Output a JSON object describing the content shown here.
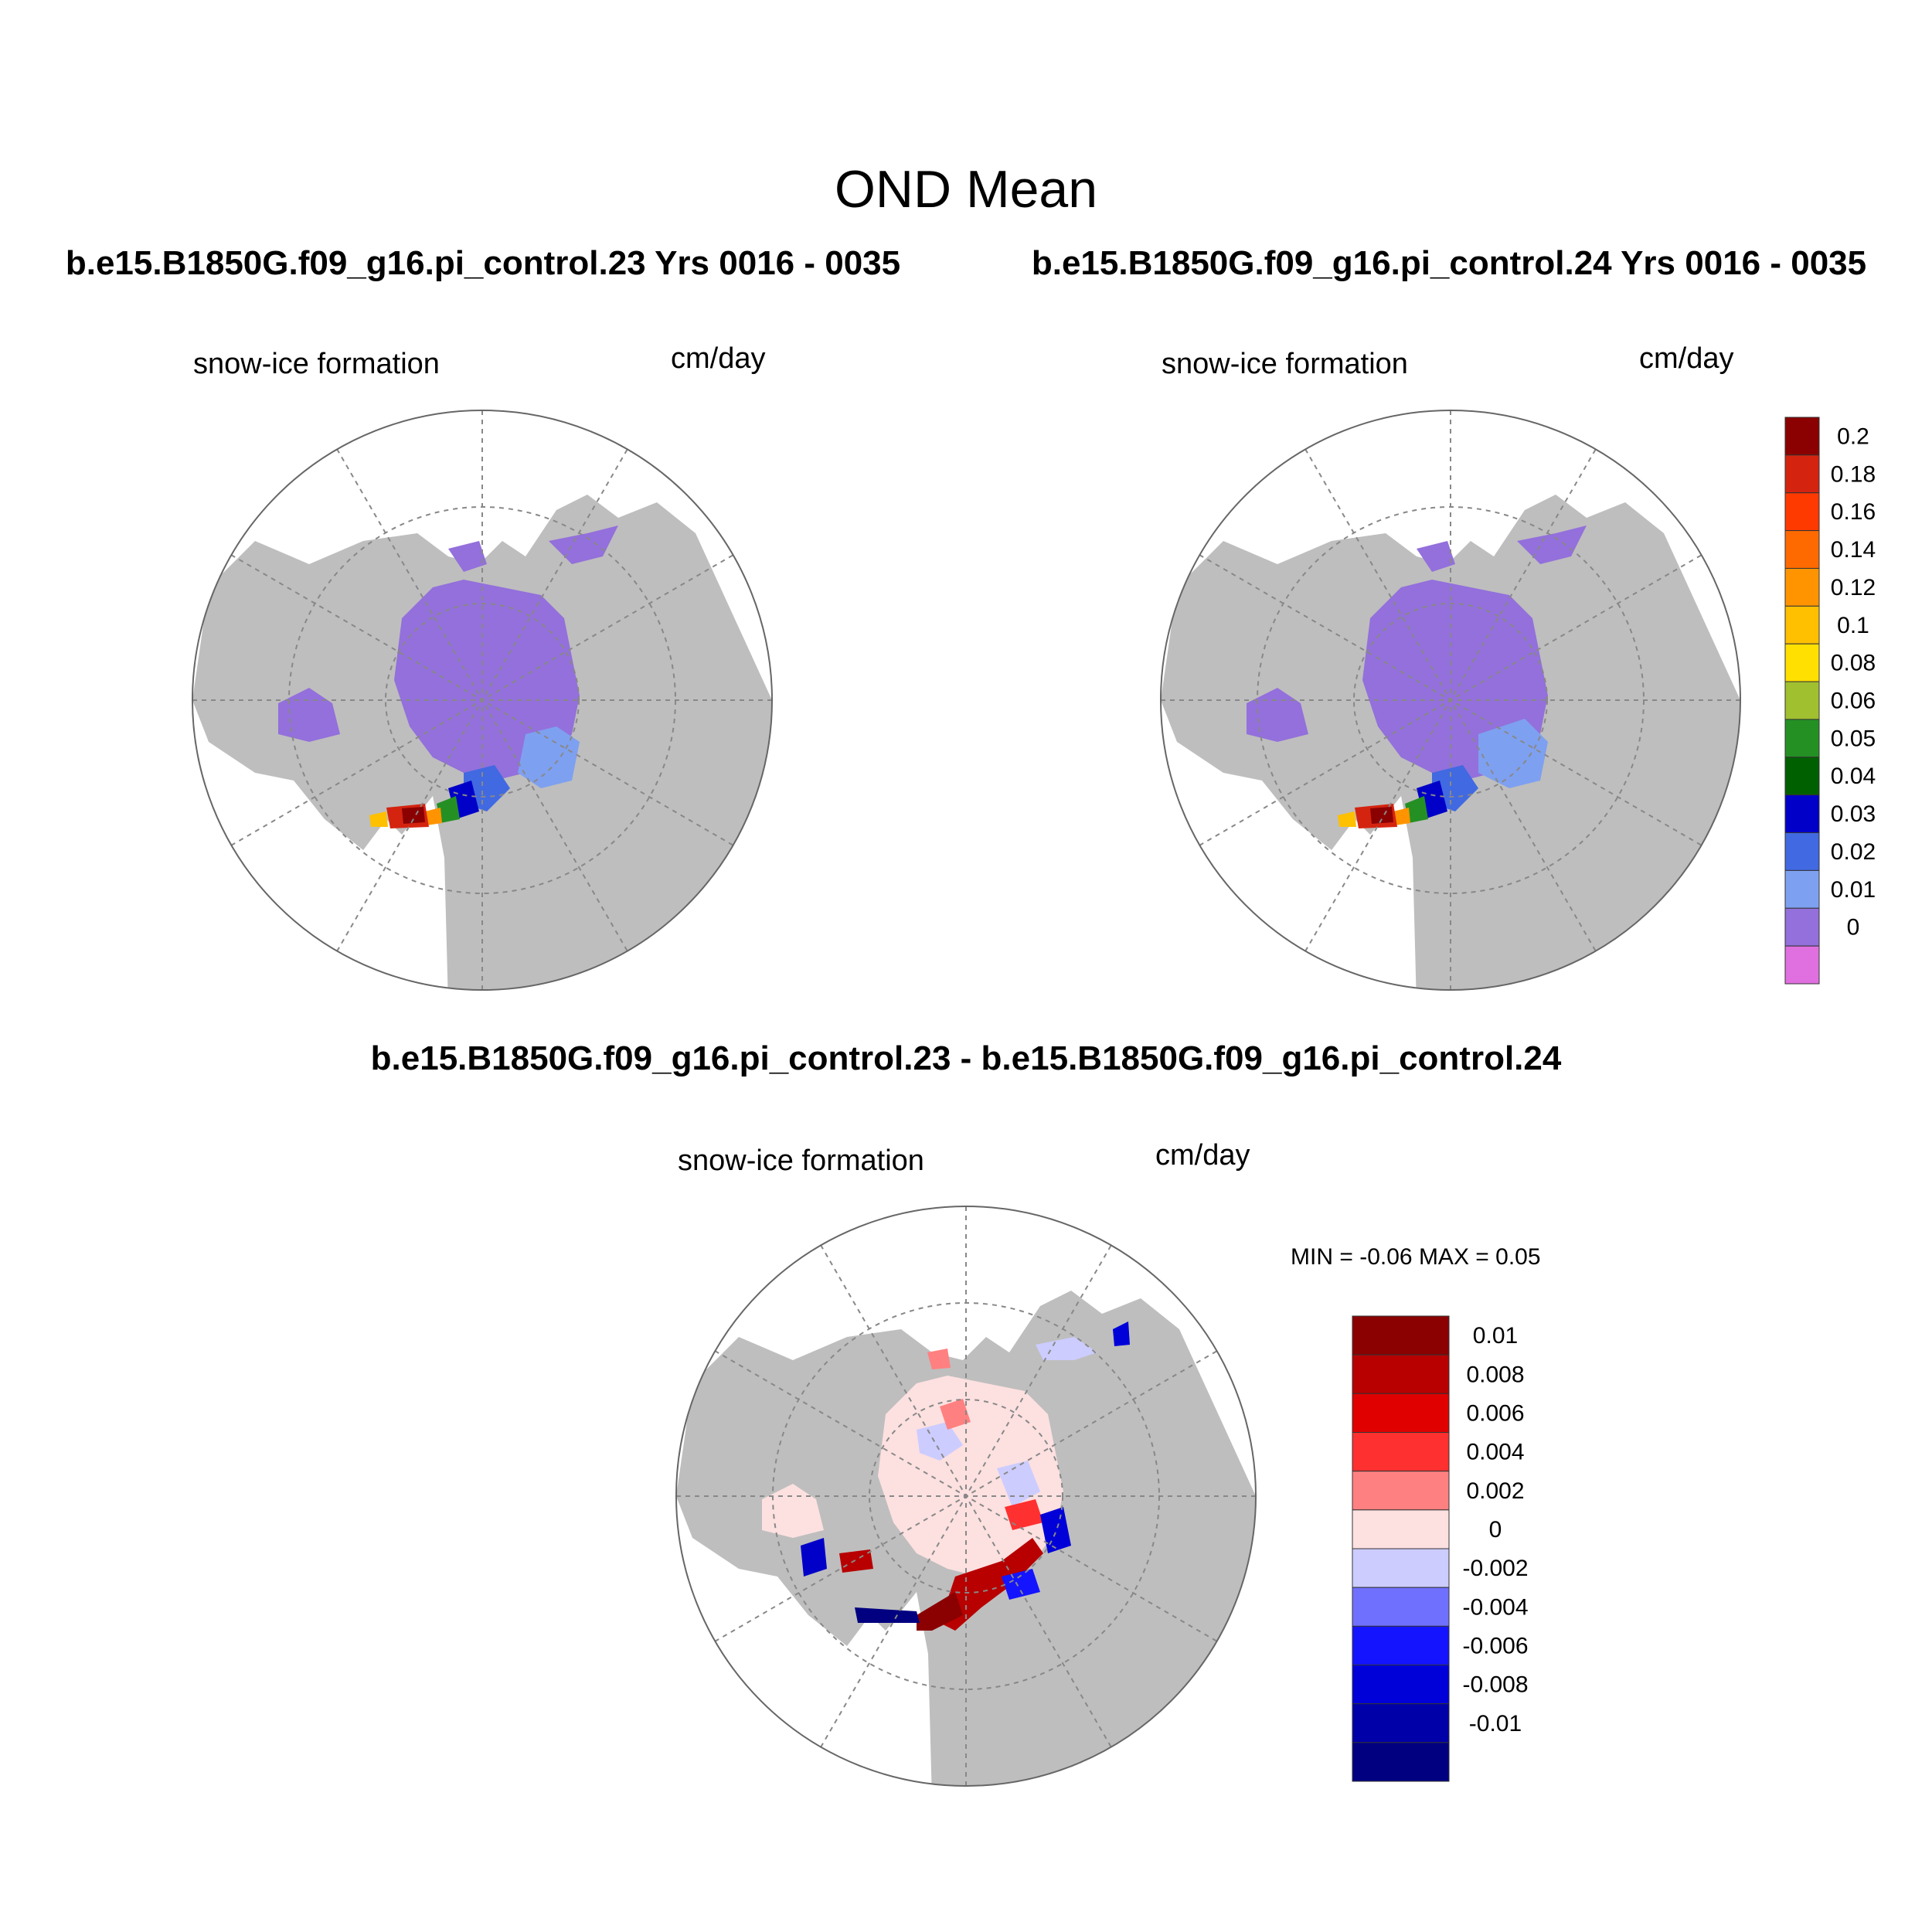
{
  "title": "OND Mean",
  "panels": [
    {
      "case_title": "b.e15.B1850G.f09_g16.pi_control.23  Yrs 0016 - 0035",
      "variable": "snow-ice formation",
      "units": "cm/day"
    },
    {
      "case_title": "b.e15.B1850G.f09_g16.pi_control.24  Yrs 0016 - 0035",
      "variable": "snow-ice formation",
      "units": "cm/day"
    }
  ],
  "difference": {
    "title": "b.e15.B1850G.f09_g16.pi_control.23 - b.e15.B1850G.f09_g16.pi_control.24",
    "variable": "snow-ice formation",
    "units": "cm/day",
    "min_label": "MIN =",
    "min_value": "-0.06",
    "max_label": "MAX =",
    "max_value": "0.05"
  },
  "colorbar_main": {
    "labels": [
      "0.2",
      "0.18",
      "0.16",
      "0.14",
      "0.12",
      "0.1",
      "0.08",
      "0.06",
      "0.05",
      "0.04",
      "0.03",
      "0.02",
      "0.01",
      "0"
    ],
    "colors": [
      "#8b0000",
      "#d42410",
      "#ff3a00",
      "#ff6a00",
      "#ff9400",
      "#ffc000",
      "#ffe000",
      "#a0c030",
      "#249024",
      "#006000",
      "#0000c8",
      "#4169e1",
      "#7ea0f0",
      "#9370db",
      "#e070e0"
    ]
  },
  "colorbar_diff": {
    "labels": [
      "0.01",
      "0.008",
      "0.006",
      "0.004",
      "0.002",
      "0",
      "-0.002",
      "-0.004",
      "-0.006",
      "-0.008",
      "-0.01"
    ],
    "colors": [
      "#8b0000",
      "#b80000",
      "#e00000",
      "#ff3030",
      "#ff8080",
      "#fde0e0",
      "#ccccff",
      "#7070ff",
      "#1414ff",
      "#0000d8",
      "#0000a8",
      "#000080"
    ]
  },
  "map_colors": {
    "land": "#bebebe",
    "ocean": "#ffffff",
    "ice_main": "#9370db",
    "grid": "#888888"
  }
}
